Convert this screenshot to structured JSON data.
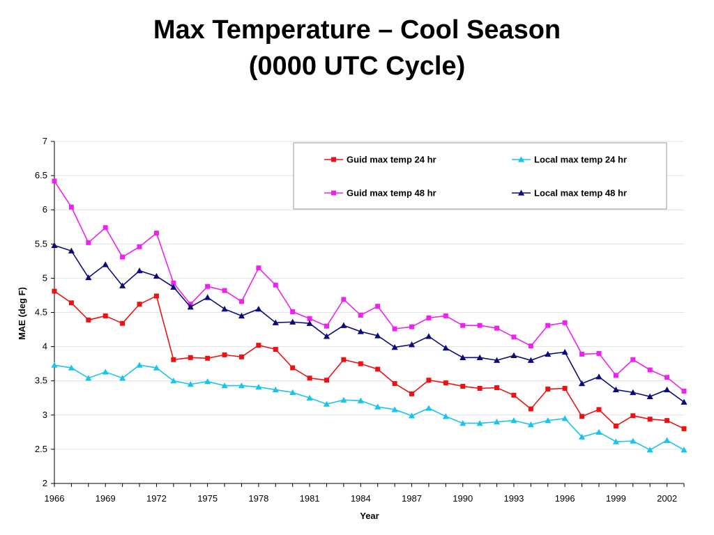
{
  "title_line1": "Max Temperature – Cool Season",
  "title_line2": "(0000 UTC Cycle)",
  "chart_data": {
    "type": "line",
    "xlabel": "Year",
    "ylabel": "MAE (deg F)",
    "ylim": [
      2,
      7
    ],
    "xlim": [
      1966,
      2003
    ],
    "yticks": [
      2,
      2.5,
      3,
      3.5,
      4,
      4.5,
      5,
      5.5,
      6,
      6.5,
      7
    ],
    "xticks": [
      1966,
      1969,
      1972,
      1975,
      1978,
      1981,
      1984,
      1987,
      1990,
      1993,
      1996,
      1999,
      2002
    ],
    "grid": "horizontal",
    "legend_position": "top-right",
    "x": [
      1966,
      1967,
      1968,
      1969,
      1970,
      1971,
      1972,
      1973,
      1974,
      1975,
      1976,
      1977,
      1978,
      1979,
      1980,
      1981,
      1982,
      1983,
      1984,
      1985,
      1986,
      1987,
      1988,
      1989,
      1990,
      1991,
      1992,
      1993,
      1994,
      1995,
      1996,
      1997,
      1998,
      1999,
      2000,
      2001,
      2002,
      2003
    ],
    "series": [
      {
        "name": "Guid max temp 24 hr",
        "color": "#ee1111",
        "marker": "square",
        "values": [
          4.81,
          4.64,
          4.39,
          4.45,
          4.34,
          4.62,
          4.74,
          3.81,
          3.84,
          3.83,
          3.88,
          3.85,
          4.02,
          3.96,
          3.69,
          3.54,
          3.51,
          3.81,
          3.75,
          3.67,
          3.46,
          3.31,
          3.51,
          3.47,
          3.42,
          3.39,
          3.4,
          3.29,
          3.09,
          3.38,
          3.39,
          2.98,
          3.08,
          2.84,
          2.99,
          2.94,
          2.92,
          2.8
        ]
      },
      {
        "name": "Local max temp 24 hr",
        "color": "#17c5ec",
        "marker": "triangle",
        "values": [
          3.73,
          3.69,
          3.54,
          3.63,
          3.54,
          3.73,
          3.69,
          3.5,
          3.45,
          3.49,
          3.43,
          3.43,
          3.41,
          3.37,
          3.33,
          3.25,
          3.16,
          3.22,
          3.21,
          3.12,
          3.08,
          2.99,
          3.1,
          2.98,
          2.88,
          2.88,
          2.9,
          2.92,
          2.86,
          2.92,
          2.95,
          2.68,
          2.75,
          2.61,
          2.62,
          2.49,
          2.63,
          2.49
        ]
      },
      {
        "name": "Guid max temp 48 hr",
        "color": "#ee22ee",
        "marker": "square",
        "values": [
          6.42,
          6.04,
          5.52,
          5.74,
          5.31,
          5.46,
          5.66,
          4.93,
          4.62,
          4.88,
          4.82,
          4.66,
          5.15,
          4.9,
          4.51,
          4.41,
          4.3,
          4.69,
          4.46,
          4.59,
          4.26,
          4.29,
          4.42,
          4.45,
          4.31,
          4.31,
          4.27,
          4.14,
          4.01,
          4.31,
          4.35,
          3.89,
          3.9,
          3.58,
          3.81,
          3.66,
          3.55,
          3.35
        ]
      },
      {
        "name": "Local max temp 48 hr",
        "color": "#0b0b7a",
        "marker": "triangle",
        "values": [
          5.48,
          5.4,
          5.01,
          5.2,
          4.89,
          5.11,
          5.03,
          4.87,
          4.58,
          4.72,
          4.55,
          4.45,
          4.55,
          4.35,
          4.36,
          4.34,
          4.15,
          4.31,
          4.22,
          4.16,
          3.99,
          4.03,
          4.15,
          3.98,
          3.84,
          3.84,
          3.8,
          3.87,
          3.8,
          3.89,
          3.92,
          3.46,
          3.56,
          3.37,
          3.33,
          3.27,
          3.37,
          3.19
        ]
      }
    ]
  }
}
